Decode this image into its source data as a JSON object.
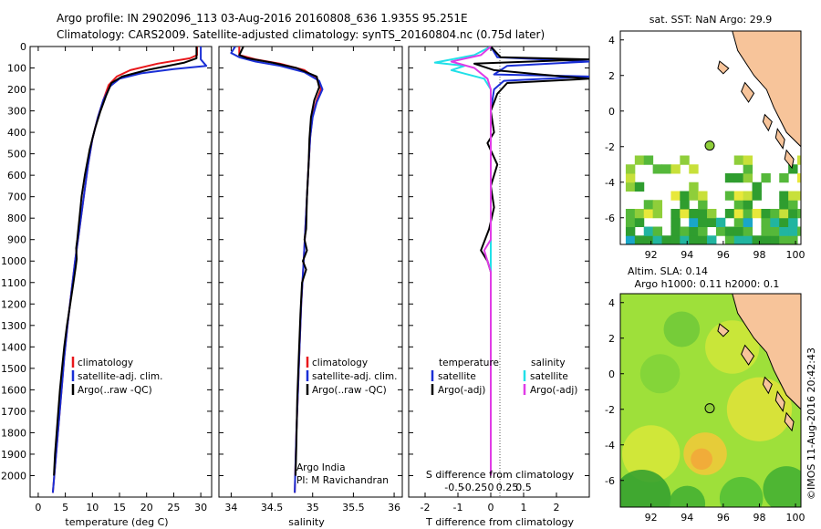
{
  "header": {
    "title_line1": "Argo profile: IN 2902096_113 03-Aug-2016 20160808_636 1.935S 95.251E",
    "title_line2": "Climatology: CARS2009. Satellite-adjusted climatology: synTS_20160804.nc (0.75d later)"
  },
  "colors": {
    "climatology": "#e8171b",
    "satellite": "#1a2fd6",
    "argo": "#000000",
    "sal_satellite": "#21e0e8",
    "sal_argo": "#e03ce6",
    "land": "#f7c49a",
    "ocean_bg": "#ffffff"
  },
  "chart_data": [
    {
      "type": "line",
      "id": "temperature_panel",
      "xlabel": "temperature (deg C)",
      "ylabel": "",
      "xlim": [
        -1.5,
        32
      ],
      "ylim": [
        2100,
        0
      ],
      "xticks": [
        0,
        5,
        10,
        15,
        20,
        25,
        30
      ],
      "yticks": [
        0,
        100,
        200,
        300,
        400,
        500,
        600,
        700,
        800,
        900,
        1000,
        1100,
        1200,
        1300,
        1400,
        1500,
        1600,
        1700,
        1800,
        1900,
        2000
      ],
      "legend": [
        "climatology",
        "satellite-adj. clim.",
        "Argo(..raw -QC)"
      ],
      "series": [
        {
          "name": "climatology",
          "color": "#e8171b",
          "points": [
            [
              29.3,
              0
            ],
            [
              29.3,
              40
            ],
            [
              28,
              55
            ],
            [
              22,
              80
            ],
            [
              17,
              110
            ],
            [
              14.5,
              140
            ],
            [
              13,
              180
            ],
            [
              12,
              250
            ],
            [
              11,
              330
            ],
            [
              10,
              430
            ],
            [
              9.2,
              550
            ],
            [
              8.4,
              700
            ],
            [
              7.6,
              850
            ],
            [
              6.8,
              1000
            ],
            [
              6.1,
              1150
            ],
            [
              5.4,
              1300
            ],
            [
              4.8,
              1450
            ],
            [
              4.3,
              1600
            ],
            [
              3.8,
              1750
            ],
            [
              3.3,
              1900
            ],
            [
              2.7,
              2080
            ]
          ]
        },
        {
          "name": "satellite-adj. clim.",
          "color": "#1a2fd6",
          "points": [
            [
              30,
              0
            ],
            [
              30,
              60
            ],
            [
              31,
              90
            ],
            [
              25,
              105
            ],
            [
              19,
              125
            ],
            [
              15,
              150
            ],
            [
              13.3,
              185
            ],
            [
              12,
              250
            ],
            [
              11,
              330
            ],
            [
              10,
              430
            ],
            [
              9.2,
              550
            ],
            [
              8.4,
              700
            ],
            [
              7.6,
              850
            ],
            [
              6.8,
              1000
            ],
            [
              6.1,
              1150
            ],
            [
              5.4,
              1300
            ],
            [
              4.8,
              1450
            ],
            [
              4.3,
              1600
            ],
            [
              3.8,
              1750
            ],
            [
              3.3,
              1900
            ],
            [
              2.7,
              2080
            ]
          ]
        },
        {
          "name": "Argo(..raw -QC)",
          "color": "#000000",
          "points": [
            [
              29.2,
              0
            ],
            [
              29.2,
              55
            ],
            [
              27,
              75
            ],
            [
              20,
              110
            ],
            [
              15.5,
              140
            ],
            [
              13.5,
              170
            ],
            [
              12.5,
              230
            ],
            [
              11.5,
              300
            ],
            [
              10.5,
              380
            ],
            [
              9.5,
              480
            ],
            [
              8.6,
              600
            ],
            [
              8,
              700
            ],
            [
              7.6,
              800
            ],
            [
              7.2,
              900
            ],
            [
              7,
              940
            ],
            [
              7.1,
              990
            ],
            [
              6.9,
              1030
            ],
            [
              6.5,
              1100
            ],
            [
              5.9,
              1200
            ],
            [
              5.3,
              1300
            ],
            [
              4.8,
              1400
            ],
            [
              4.4,
              1500
            ],
            [
              4,
              1600
            ],
            [
              3.7,
              1700
            ],
            [
              3.4,
              1800
            ],
            [
              3.1,
              1900
            ],
            [
              2.9,
              2000
            ]
          ]
        }
      ]
    },
    {
      "type": "line",
      "id": "salinity_panel",
      "xlabel": "salinity",
      "xlim": [
        33.85,
        36.1
      ],
      "ylim": [
        2100,
        0
      ],
      "xticks": [
        34,
        34.5,
        35,
        35.5,
        36
      ],
      "legend": [
        "climatology",
        "satellite-adj. clim.",
        "Argo(..raw -QC)"
      ],
      "annotation": [
        "Argo India",
        "PI: M Ravichandran"
      ],
      "series": [
        {
          "name": "climatology",
          "color": "#e8171b",
          "points": [
            [
              34.1,
              0
            ],
            [
              34.1,
              40
            ],
            [
              34.3,
              60
            ],
            [
              34.6,
              80
            ],
            [
              34.9,
              110
            ],
            [
              35.05,
              150
            ],
            [
              35.1,
              200
            ],
            [
              35.05,
              250
            ],
            [
              35.0,
              320
            ],
            [
              34.97,
              420
            ],
            [
              34.95,
              550
            ],
            [
              34.93,
              700
            ],
            [
              34.91,
              850
            ],
            [
              34.89,
              1000
            ],
            [
              34.86,
              1200
            ],
            [
              34.84,
              1400
            ],
            [
              34.82,
              1600
            ],
            [
              34.8,
              1800
            ],
            [
              34.78,
              2080
            ]
          ]
        },
        {
          "name": "satellite-adj. clim.",
          "color": "#1a2fd6",
          "points": [
            [
              34.05,
              0
            ],
            [
              34.0,
              30
            ],
            [
              34.1,
              50
            ],
            [
              34.3,
              70
            ],
            [
              34.6,
              90
            ],
            [
              34.9,
              120
            ],
            [
              35.08,
              160
            ],
            [
              35.12,
              200
            ],
            [
              35.05,
              260
            ],
            [
              35.0,
              330
            ],
            [
              34.97,
              420
            ],
            [
              34.95,
              550
            ],
            [
              34.93,
              700
            ],
            [
              34.91,
              850
            ],
            [
              34.89,
              1000
            ],
            [
              34.86,
              1200
            ],
            [
              34.84,
              1400
            ],
            [
              34.82,
              1600
            ],
            [
              34.8,
              1800
            ],
            [
              34.78,
              2080
            ]
          ]
        },
        {
          "name": "Argo(..raw -QC)",
          "color": "#000000",
          "points": [
            [
              34.15,
              0
            ],
            [
              34.1,
              40
            ],
            [
              34.2,
              55
            ],
            [
              34.5,
              75
            ],
            [
              34.8,
              100
            ],
            [
              35.05,
              140
            ],
            [
              35.08,
              190
            ],
            [
              35.02,
              250
            ],
            [
              34.98,
              330
            ],
            [
              34.96,
              430
            ],
            [
              34.95,
              550
            ],
            [
              34.93,
              700
            ],
            [
              34.92,
              850
            ],
            [
              34.9,
              900
            ],
            [
              34.93,
              950
            ],
            [
              34.88,
              1000
            ],
            [
              34.92,
              1040
            ],
            [
              34.87,
              1100
            ],
            [
              34.85,
              1250
            ],
            [
              34.83,
              1450
            ],
            [
              34.81,
              1650
            ],
            [
              34.8,
              1850
            ],
            [
              34.79,
              2000
            ]
          ]
        }
      ]
    },
    {
      "type": "line",
      "id": "difference_panel",
      "xlabel": "T difference from climatology",
      "xlabel2": "S difference from climatology",
      "xlim": [
        -2.5,
        3.0
      ],
      "ylim": [
        2100,
        0
      ],
      "xticks_T": [
        -2,
        -1,
        0,
        1,
        2
      ],
      "xticks_S": [
        "-0.5",
        "-0.25",
        "0",
        "0.25",
        "0.5"
      ],
      "legend_titles": [
        "temperature",
        "salinity"
      ],
      "legend": [
        "satellite",
        "Argo(-adj)",
        "satellite",
        "Argo(-adj)"
      ],
      "series": [
        {
          "name": "T satellite",
          "color": "#1a2fd6",
          "points": [
            [
              0,
              0
            ],
            [
              0.2,
              50
            ],
            [
              3.0,
              70
            ],
            [
              0.5,
              90
            ],
            [
              0.3,
              110
            ],
            [
              0.1,
              130
            ],
            [
              3.0,
              140
            ],
            [
              0.4,
              160
            ],
            [
              0.1,
              200
            ],
            [
              0,
              300
            ],
            [
              0,
              2000
            ]
          ]
        },
        {
          "name": "T Argo(-adj)",
          "color": "#000000",
          "points": [
            [
              0,
              0
            ],
            [
              0.3,
              50
            ],
            [
              3.0,
              60
            ],
            [
              -0.5,
              80
            ],
            [
              0.1,
              110
            ],
            [
              1.5,
              130
            ],
            [
              3.0,
              150
            ],
            [
              0.5,
              170
            ],
            [
              0.2,
              220
            ],
            [
              0,
              300
            ],
            [
              0.1,
              400
            ],
            [
              -0.1,
              450
            ],
            [
              0.2,
              550
            ],
            [
              0,
              650
            ],
            [
              0.1,
              750
            ],
            [
              -0.05,
              850
            ],
            [
              -0.3,
              950
            ],
            [
              -0.1,
              1000
            ],
            [
              0,
              1050
            ],
            [
              0,
              2000
            ]
          ]
        },
        {
          "name": "S satellite",
          "color": "#21e0e8",
          "points": [
            [
              0,
              0
            ],
            [
              -0.5,
              40
            ],
            [
              -1.7,
              75
            ],
            [
              -0.8,
              90
            ],
            [
              -1.2,
              110
            ],
            [
              -0.2,
              150
            ],
            [
              0,
              200
            ],
            [
              0,
              2000
            ]
          ]
        },
        {
          "name": "S Argo(-adj)",
          "color": "#e03ce6",
          "points": [
            [
              0,
              0
            ],
            [
              -0.3,
              40
            ],
            [
              -1.2,
              70
            ],
            [
              -0.5,
              100
            ],
            [
              -0.1,
              150
            ],
            [
              0,
              200
            ],
            [
              0,
              900
            ],
            [
              -0.2,
              950
            ],
            [
              -0.1,
              1000
            ],
            [
              0,
              1050
            ],
            [
              0,
              2000
            ]
          ]
        }
      ]
    },
    {
      "type": "heatmap",
      "id": "sst_map",
      "title": "sat. SST: NaN Argo: 29.9",
      "xticks": [
        92,
        94,
        96,
        98,
        100
      ],
      "yticks": [
        4,
        2,
        0,
        -2,
        -4,
        -6
      ],
      "xlim": [
        90.3,
        100.3
      ],
      "ylim": [
        -7.5,
        4.5
      ],
      "marker": [
        95.25,
        -1.94
      ]
    },
    {
      "type": "heatmap",
      "id": "sla_map",
      "title_line1": "Altim. SLA: 0.14",
      "title_line2": "Argo h1000: 0.11 h2000: 0.1",
      "xticks": [
        92,
        94,
        96,
        98,
        100
      ],
      "yticks": [
        4,
        2,
        0,
        -2,
        -4,
        -6
      ],
      "xlim": [
        90.3,
        100.3
      ],
      "ylim": [
        -7.5,
        4.5
      ],
      "marker": [
        95.25,
        -1.94
      ]
    }
  ],
  "credit": "©IMOS 11-Aug-2016 20:42:43"
}
